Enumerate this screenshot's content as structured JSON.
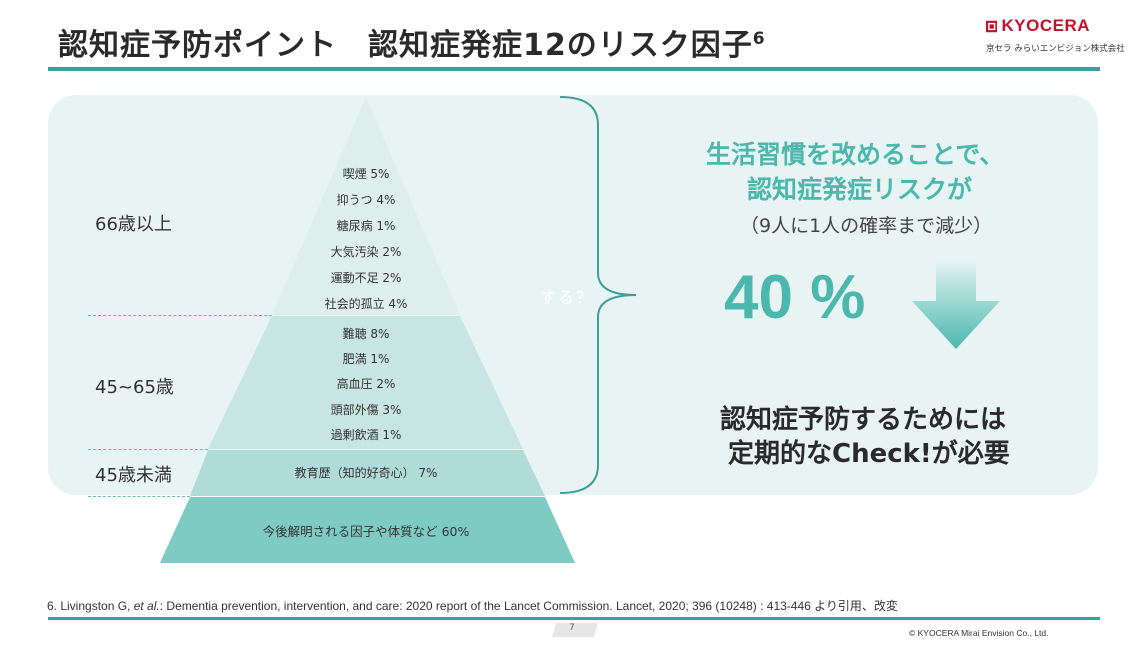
{
  "header": {
    "title": "認知症予防ポイント　認知症発症12のリスク因子",
    "title_sup": "6",
    "logo_text": "KYOCERA",
    "logo_sub": "京セラ みらいエンビジョン株式会社"
  },
  "colors": {
    "accent": "#3f9e97",
    "teal_text": "#4bb7ad",
    "panel_bg": "#e8f4f3",
    "logo_red": "#c3112b"
  },
  "pyramid": {
    "age_groups": [
      {
        "label": "66歳以上"
      },
      {
        "label": "45~65歳"
      },
      {
        "label": "45歳未満"
      }
    ],
    "tier_top": [
      "喫煙 5%",
      "抑うつ 4%",
      "糖尿病 1%",
      "大気汚染 2%",
      "運動不足 2%",
      "社会的孤立 4%"
    ],
    "tier_mid": [
      "難聴 8%",
      "肥満 1%",
      "高血圧 2%",
      "頭部外傷 3%",
      "過剰飲酒 1%"
    ],
    "tier_low": [
      "教育歴（知的好奇心） 7%"
    ],
    "tier_base": [
      "今後解明される因子や体質など 60%"
    ],
    "faint_text": "する？"
  },
  "message": {
    "line1": "生活習慣を改めることで、",
    "line2": "認知症発症リスクが",
    "line3": "（9人に1人の確率まで減少）",
    "percent": "40 %",
    "check_line1": "認知症予防するためには",
    "check_line2": "定期的なCheck!が必要"
  },
  "footer": {
    "ref_prefix": "6. Livingston G, ",
    "ref_italic": "et al.",
    "ref_rest": ": Dementia prevention, intervention, and care: 2020 report of the Lancet Commission. Lancet, 2020; 396 (10248) : 413-446 より引用、改変",
    "page": "7",
    "copyright": "© KYOCERA Mirai Envision Co., Ltd."
  }
}
